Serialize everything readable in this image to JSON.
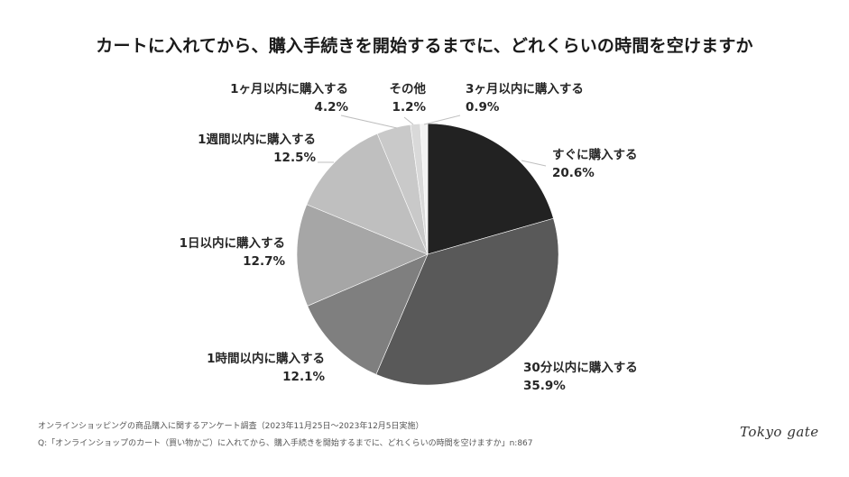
{
  "chart_data": {
    "type": "pie",
    "title": "カートに入れてから、購入手続きを開始するまでに、どれくらいの時間を空けますか",
    "start_angle_deg": 0,
    "direction": "clockwise",
    "categories": [
      "すぐに購入する",
      "30分以内に購入する",
      "1時間以内に購入する",
      "1日以内に購入する",
      "1週間以内に購入する",
      "1ヶ月以内に購入する",
      "その他",
      "3ヶ月以内に購入する"
    ],
    "values": [
      20.6,
      35.9,
      12.1,
      12.7,
      12.5,
      4.2,
      1.2,
      0.9
    ],
    "value_labels": [
      "20.6%",
      "35.9%",
      "12.1%",
      "12.7%",
      "12.5%",
      "4.2%",
      "1.2%",
      "0.9%"
    ],
    "colors": [
      "#222222",
      "#595959",
      "#7f7f7f",
      "#a6a6a6",
      "#bfbfbf",
      "#c9c9c9",
      "#d9d9d9",
      "#f2f2f2"
    ],
    "legend": "none (data labels outside slices)",
    "unit": "%"
  },
  "footer": {
    "survey": "オンラインショッピングの商品購入に関するアンケート調査（2023年11月25日〜2023年12月5日実施）",
    "question": "Q:「オンラインショップのカート（買い物かご）に入れてから、購入手続きを開始するまでに、どれくらいの時間を空けますか」n:867"
  },
  "logo": "Tokyo gate"
}
